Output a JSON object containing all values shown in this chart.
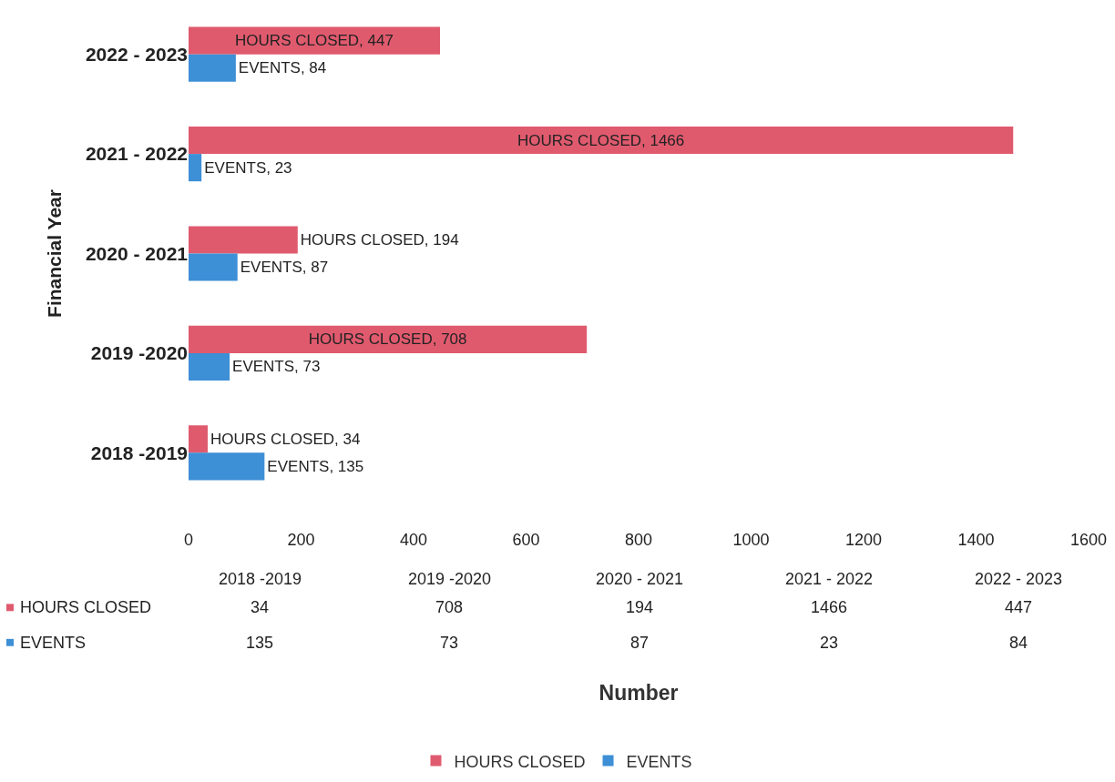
{
  "chart_data": [
    {
      "type": "bar",
      "orientation": "horizontal",
      "categories": [
        "2022 - 2023",
        "2021 - 2022",
        "2020 - 2021",
        "2019 -2020",
        "2018 -2019"
      ],
      "series": [
        {
          "name": "HOURS CLOSED",
          "color": "#e05a6e",
          "values": [
            447,
            1466,
            194,
            708,
            34
          ],
          "value_labels": [
            "HOURS CLOSED, 447",
            "HOURS CLOSED, 1466",
            "HOURS CLOSED, 194",
            "HOURS CLOSED, 708",
            "HOURS CLOSED, 34"
          ]
        },
        {
          "name": "EVENTS",
          "color": "#3d8fd6",
          "values": [
            84,
            23,
            87,
            73,
            135
          ],
          "value_labels": [
            "EVENTS, 84",
            "EVENTS, 23",
            "EVENTS, 87",
            "EVENTS, 73",
            "EVENTS, 135"
          ]
        }
      ],
      "xlim": [
        0,
        1600
      ],
      "xticks": [
        0,
        200,
        400,
        600,
        800,
        1000,
        1200,
        1400,
        1600
      ],
      "xlabel": "Number",
      "ylabel": "Financial Year",
      "legend": "bottom"
    },
    {
      "type": "other",
      "categories": [
        "2018 -2019",
        "2019 -2020",
        "2020 - 2021",
        "2021 - 2022",
        "2022 - 2023"
      ],
      "series": [
        {
          "name": "HOURS CLOSED",
          "color": "#e05a6e",
          "values": [
            34,
            708,
            194,
            1466,
            447
          ]
        },
        {
          "name": "EVENTS",
          "color": "#3d8fd6",
          "values": [
            135,
            73,
            87,
            23,
            84
          ]
        }
      ],
      "data_labels": true
    }
  ]
}
